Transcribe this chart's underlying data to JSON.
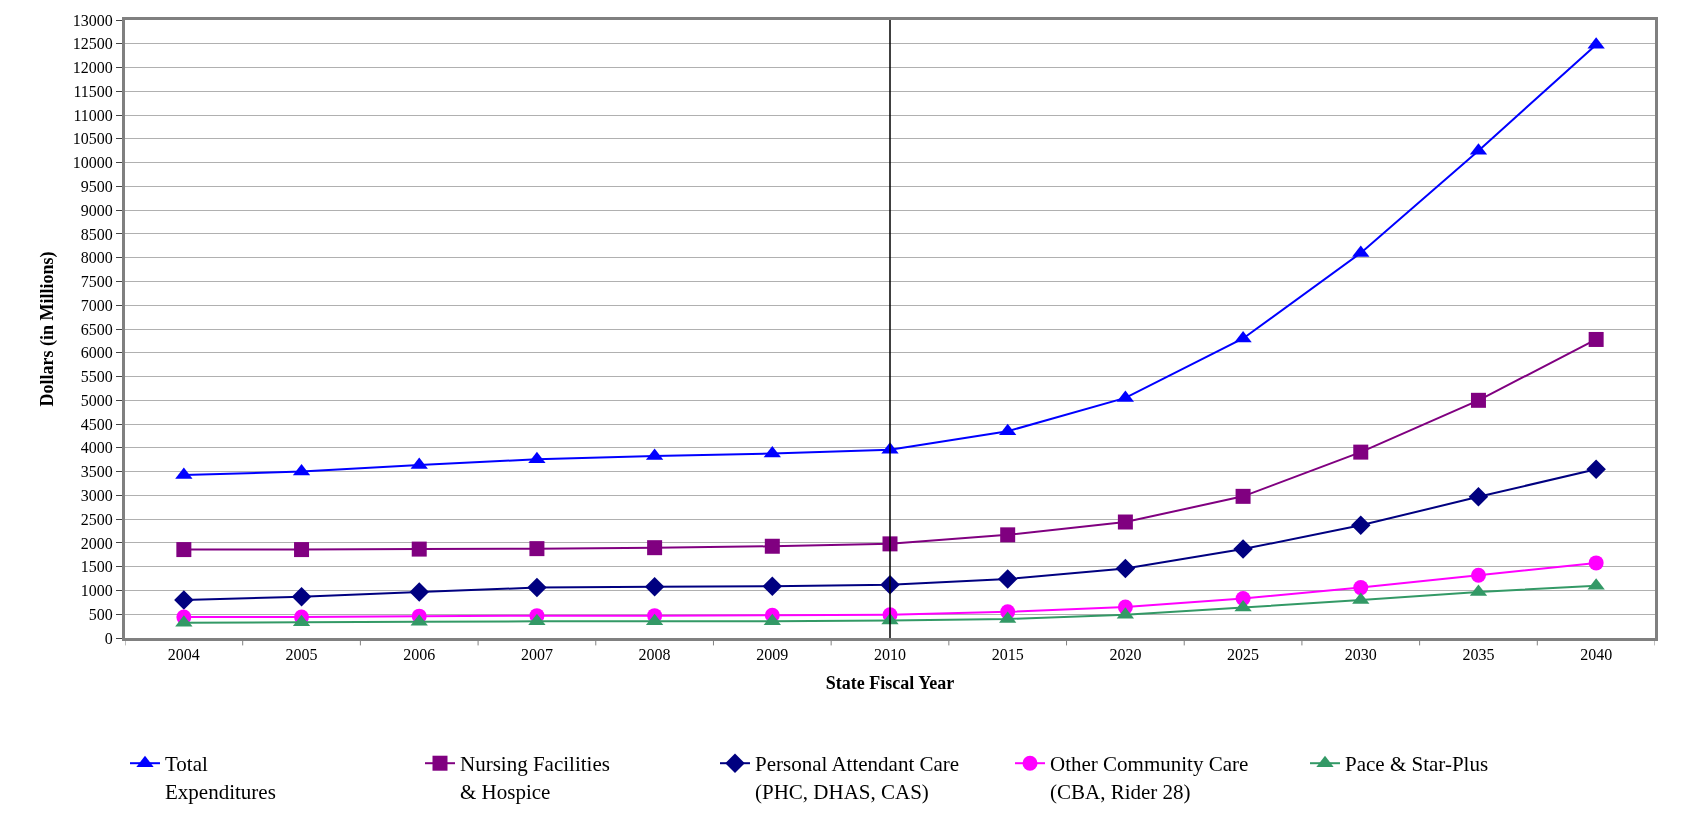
{
  "chart_data": {
    "type": "line",
    "xlabel": "State Fiscal Year",
    "ylabel": "Dollars (in Millions)",
    "categories": [
      "2004",
      "2005",
      "2006",
      "2007",
      "2008",
      "2009",
      "2010",
      "2015",
      "2020",
      "2025",
      "2030",
      "2035",
      "2040"
    ],
    "ylim": [
      0,
      13000
    ],
    "yticks": [
      0,
      500,
      1000,
      1500,
      2000,
      2500,
      3000,
      3500,
      4000,
      4500,
      5000,
      5500,
      6000,
      6500,
      7000,
      7500,
      8000,
      8500,
      9000,
      9500,
      10000,
      10500,
      11000,
      11500,
      12000,
      12500,
      13000
    ],
    "grid": "y",
    "legend": "bottom",
    "ref_lines": [
      {
        "axis": "x",
        "value": "2010",
        "color": "#000000"
      }
    ],
    "series": [
      {
        "name": "Total\nExpenditures",
        "color": "#0000ff",
        "marker": "triangle",
        "values": [
          3430,
          3500,
          3640,
          3760,
          3830,
          3880,
          3960,
          4350,
          5050,
          6300,
          8100,
          10250,
          12480
        ]
      },
      {
        "name": "Nursing Facilities\n& Hospice",
        "color": "#800080",
        "marker": "square",
        "values": [
          1860,
          1860,
          1870,
          1880,
          1900,
          1930,
          1980,
          2170,
          2440,
          2980,
          3910,
          5000,
          6280
        ]
      },
      {
        "name": "Personal Attendant Care\n(PHC, DHAS, CAS)",
        "color": "#000080",
        "marker": "diamond",
        "values": [
          800,
          870,
          970,
          1060,
          1080,
          1090,
          1120,
          1240,
          1460,
          1870,
          2370,
          2970,
          3550
        ]
      },
      {
        "name": "Other Community Care\n(CBA, Rider 28)",
        "color": "#ff00ff",
        "marker": "circle",
        "values": [
          440,
          440,
          460,
          470,
          470,
          480,
          490,
          550,
          650,
          830,
          1060,
          1320,
          1580
        ]
      },
      {
        "name": "Pace & Star-Plus",
        "color": "#339966",
        "marker": "triangle",
        "values": [
          320,
          330,
          340,
          350,
          350,
          350,
          370,
          400,
          490,
          640,
          800,
          970,
          1100
        ]
      }
    ]
  }
}
